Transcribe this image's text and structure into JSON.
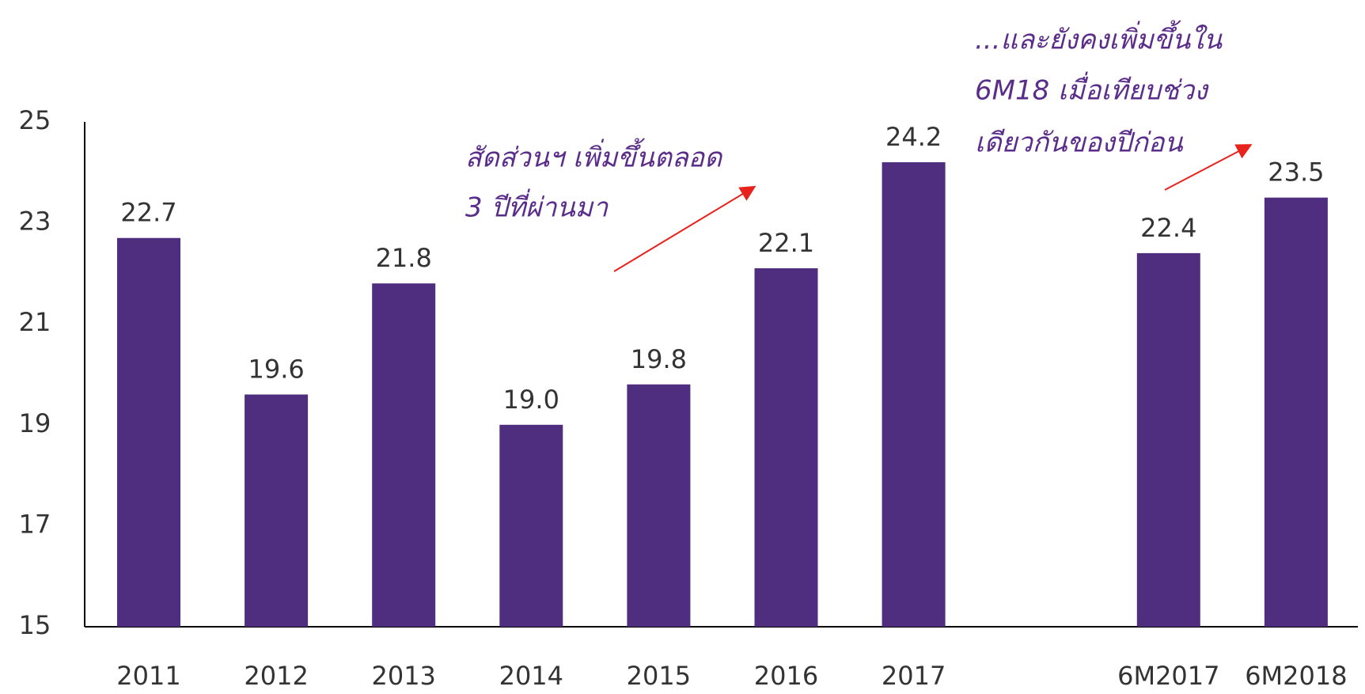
{
  "chart_data": {
    "type": "bar",
    "categories": [
      "2011",
      "2012",
      "2013",
      "2014",
      "2015",
      "2016",
      "2017",
      null,
      "6M2017",
      "6M2018"
    ],
    "values": [
      22.7,
      19.6,
      21.8,
      19.0,
      19.8,
      22.1,
      24.2,
      null,
      22.4,
      23.5
    ],
    "value_labels": [
      "22.7",
      "19.6",
      "21.8",
      "19.0",
      "19.8",
      "22.1",
      "24.2",
      null,
      "22.4",
      "23.5"
    ],
    "color": "#4f2d7f",
    "ylim": [
      15,
      25
    ],
    "yticks": [
      15,
      17,
      19,
      21,
      23,
      25
    ],
    "grid": false,
    "annotations": [
      {
        "lines": [
          "สัดส่วนฯ เพิ่มขึ้นตลอด",
          "3 ปีที่ผ่านมา"
        ]
      },
      {
        "lines": [
          "...และยังคงเพิ่มขึ้นใน",
          "6M18 เมื่อเทียบช่วง",
          "เดียวกันของปีก่อน"
        ]
      }
    ]
  }
}
